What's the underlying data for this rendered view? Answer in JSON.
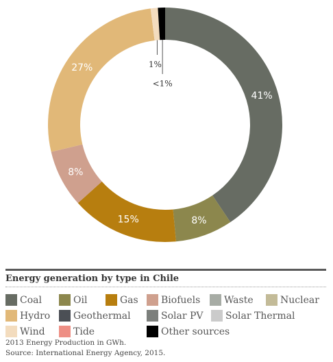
{
  "chart_data": {
    "type": "pie",
    "title": "Energy generation by type in Chile",
    "categories": [
      "Coal",
      "Oil",
      "Gas",
      "Biofuels",
      "Waste",
      "Nuclear",
      "Hydro",
      "Geothermal",
      "Solar PV",
      "Solar Thermal",
      "Wind",
      "Tide",
      "Other sources"
    ],
    "values": [
      41,
      8,
      15,
      8,
      0,
      0,
      27,
      0,
      0,
      0,
      1,
      0,
      1
    ],
    "slice_labels": [
      "41%",
      "8%",
      "15%",
      "8%",
      "",
      "",
      "27%",
      "",
      "",
      "",
      "1%",
      "",
      "<1%"
    ],
    "colors": [
      "#676c63",
      "#8c874d",
      "#b77e0f",
      "#cfa08e",
      "#a7aca5",
      "#c3bb98",
      "#e1b878",
      "#4b4f55",
      "#7c7f7c",
      "#cbcbcb",
      "#f3dcbe",
      "#ee8f85",
      "#000000"
    ],
    "legend": "bottom",
    "donut": true
  },
  "legend_rows": [
    [
      0,
      1,
      2,
      3,
      4,
      5
    ],
    [
      6,
      7,
      8,
      9
    ],
    [
      10,
      11,
      12
    ]
  ],
  "notes": {
    "unit_note": "2013 Energy Production in GWh.",
    "source": "Source: International Energy Agency, 2015."
  }
}
